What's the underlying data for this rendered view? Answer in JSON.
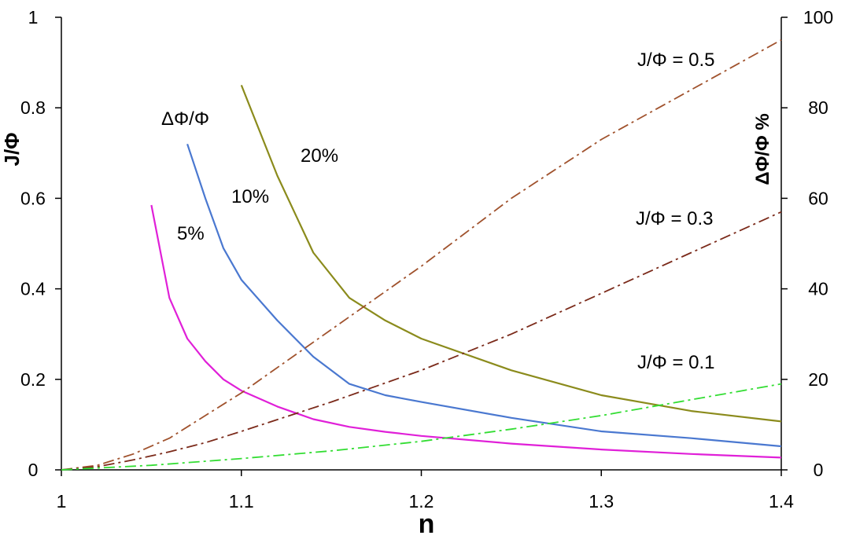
{
  "chart_data": {
    "type": "line",
    "xlabel": "n",
    "ylabel_left": "J/Φ",
    "ylabel_right": "ΔΦ/Φ %",
    "xlim": [
      1,
      1.4
    ],
    "ylim_left": [
      0,
      1
    ],
    "ylim_right": [
      0,
      100
    ],
    "x_ticks": [
      "1",
      "1.1",
      "1.2",
      "1.3",
      "1.4"
    ],
    "y_ticks_left": [
      "0",
      "0.2",
      "0.4",
      "0.6",
      "0.8",
      "1"
    ],
    "y_ticks_right": [
      "0",
      "20",
      "40",
      "60",
      "80",
      "100"
    ],
    "grid": false,
    "legend": "none",
    "series": [
      {
        "name": "5%",
        "axis": "left",
        "color": "#e020d8",
        "style": "solid",
        "x": [
          1.05,
          1.06,
          1.07,
          1.08,
          1.09,
          1.1,
          1.12,
          1.14,
          1.16,
          1.18,
          1.2,
          1.25,
          1.3,
          1.35,
          1.4
        ],
        "y": [
          0.585,
          0.38,
          0.29,
          0.24,
          0.2,
          0.175,
          0.14,
          0.112,
          0.095,
          0.084,
          0.075,
          0.058,
          0.045,
          0.035,
          0.027
        ]
      },
      {
        "name": "10%",
        "axis": "left",
        "color": "#4a78d0",
        "style": "solid",
        "x": [
          1.07,
          1.08,
          1.09,
          1.1,
          1.12,
          1.14,
          1.16,
          1.18,
          1.2,
          1.25,
          1.3,
          1.35,
          1.4
        ],
        "y": [
          0.72,
          0.6,
          0.49,
          0.42,
          0.33,
          0.25,
          0.19,
          0.165,
          0.15,
          0.115,
          0.085,
          0.07,
          0.052
        ]
      },
      {
        "name": "20%",
        "axis": "left",
        "color": "#8b8b1c",
        "style": "solid",
        "x": [
          1.1,
          1.12,
          1.14,
          1.16,
          1.18,
          1.2,
          1.25,
          1.3,
          1.35,
          1.4
        ],
        "y": [
          0.85,
          0.65,
          0.48,
          0.38,
          0.33,
          0.29,
          0.22,
          0.165,
          0.13,
          0.107
        ]
      },
      {
        "name": "J/Φ = 0.5",
        "axis": "right",
        "color": "#a0522d",
        "style": "dashdot",
        "x": [
          1,
          1.02,
          1.04,
          1.06,
          1.08,
          1.1,
          1.15,
          1.2,
          1.25,
          1.3,
          1.35,
          1.4
        ],
        "y": [
          0,
          1,
          3.5,
          7,
          12,
          17,
          31,
          45,
          60,
          73,
          84,
          95
        ]
      },
      {
        "name": "J/Φ = 0.3",
        "axis": "right",
        "color": "#7b2a1a",
        "style": "dashdot",
        "x": [
          1,
          1.02,
          1.04,
          1.06,
          1.08,
          1.1,
          1.15,
          1.2,
          1.25,
          1.3,
          1.35,
          1.4
        ],
        "y": [
          0,
          0.7,
          2.2,
          4,
          6,
          8.5,
          15,
          22,
          30,
          39,
          48,
          57
        ]
      },
      {
        "name": "J/Φ = 0.1",
        "axis": "right",
        "color": "#33dd33",
        "style": "dashdot",
        "x": [
          1,
          1.05,
          1.1,
          1.15,
          1.2,
          1.25,
          1.3,
          1.35,
          1.4
        ],
        "y": [
          0,
          1,
          2.5,
          4.2,
          6.3,
          9,
          12,
          15.5,
          19
        ]
      }
    ],
    "annotations": [
      {
        "text": "ΔΦ/Φ"
      },
      {
        "text": "20%"
      },
      {
        "text": "10%"
      },
      {
        "text": "5%"
      },
      {
        "text": "J/Φ = 0.5"
      },
      {
        "text": "J/Φ = 0.3"
      },
      {
        "text": "J/Φ = 0.1"
      }
    ]
  }
}
